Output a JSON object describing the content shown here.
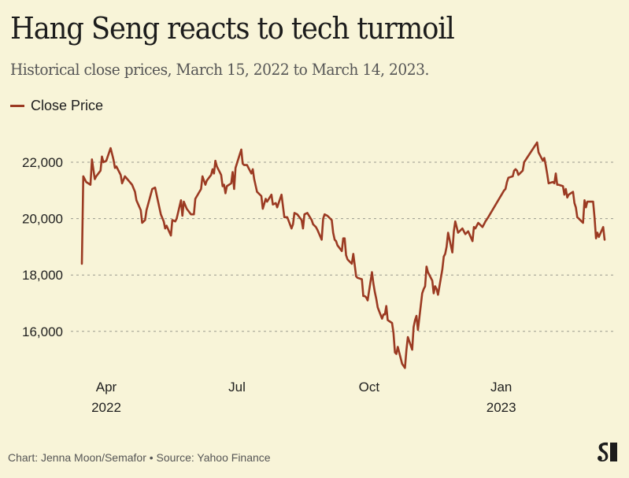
{
  "header": {
    "title": "Hang Seng reacts to tech turmoil",
    "subtitle": "Historical close prices, March 15, 2022 to March 14, 2023."
  },
  "legend": {
    "items": [
      {
        "label": "Close Price",
        "color": "#9b3a22"
      }
    ]
  },
  "footer": {
    "credit": "Chart: Jenna Moon/Semafor • Source: Yahoo Finance",
    "logo_icon": "semafor-logo-icon"
  },
  "colors": {
    "background": "#f8f4d8",
    "line": "#9b3a22",
    "grid": "#9a9a8e",
    "text": "#1e1e1e"
  },
  "chart_data": {
    "type": "line",
    "title": "Hang Seng reacts to tech turmoil",
    "subtitle": "Historical close prices, March 15, 2022 to March 14, 2023.",
    "xlabel": "",
    "ylabel": "",
    "x_range": [
      "2022-03-15",
      "2023-03-14"
    ],
    "ylim": [
      14500,
      23000
    ],
    "y_ticks": [
      16000,
      18000,
      20000,
      22000
    ],
    "y_tick_labels": [
      "16,000",
      "18,000",
      "20,000",
      "22,000"
    ],
    "x_ticks": [
      {
        "date": "2022-04-01",
        "label": "Apr",
        "sublabel": "2022"
      },
      {
        "date": "2022-07-01",
        "label": "Jul",
        "sublabel": ""
      },
      {
        "date": "2022-10-01",
        "label": "Oct",
        "sublabel": ""
      },
      {
        "date": "2023-01-01",
        "label": "Jan",
        "sublabel": "2023"
      }
    ],
    "grid": "horizontal-dashed",
    "legend_position": "top-left",
    "series": [
      {
        "name": "Close Price",
        "color": "#9b3a22",
        "points": [
          [
            "2022-03-15",
            18400
          ],
          [
            "2022-03-16",
            21500
          ],
          [
            "2022-03-18",
            21300
          ],
          [
            "2022-03-21",
            21200
          ],
          [
            "2022-03-22",
            22100
          ],
          [
            "2022-03-24",
            21400
          ],
          [
            "2022-03-25",
            21500
          ],
          [
            "2022-03-28",
            21700
          ],
          [
            "2022-03-29",
            22200
          ],
          [
            "2022-03-30",
            22000
          ],
          [
            "2022-04-01",
            22050
          ],
          [
            "2022-04-04",
            22500
          ],
          [
            "2022-04-06",
            22100
          ],
          [
            "2022-04-07",
            21800
          ],
          [
            "2022-04-08",
            21850
          ],
          [
            "2022-04-11",
            21550
          ],
          [
            "2022-04-12",
            21250
          ],
          [
            "2022-04-14",
            21500
          ],
          [
            "2022-04-19",
            21200
          ],
          [
            "2022-04-21",
            20950
          ],
          [
            "2022-04-22",
            20650
          ],
          [
            "2022-04-25",
            20300
          ],
          [
            "2022-04-26",
            19850
          ],
          [
            "2022-04-28",
            19950
          ],
          [
            "2022-04-29",
            20300
          ],
          [
            "2022-05-03",
            21050
          ],
          [
            "2022-05-05",
            21100
          ],
          [
            "2022-05-06",
            20850
          ],
          [
            "2022-05-09",
            20150
          ],
          [
            "2022-05-11",
            19900
          ],
          [
            "2022-05-12",
            19650
          ],
          [
            "2022-05-13",
            19750
          ],
          [
            "2022-05-16",
            19400
          ],
          [
            "2022-05-17",
            19950
          ],
          [
            "2022-05-19",
            19900
          ],
          [
            "2022-05-20",
            20000
          ],
          [
            "2022-05-23",
            20650
          ],
          [
            "2022-05-24",
            20100
          ],
          [
            "2022-05-25",
            20600
          ],
          [
            "2022-05-27",
            20350
          ],
          [
            "2022-05-30",
            20150
          ],
          [
            "2022-06-01",
            20150
          ],
          [
            "2022-06-02",
            20700
          ],
          [
            "2022-06-06",
            21050
          ],
          [
            "2022-06-07",
            21500
          ],
          [
            "2022-06-09",
            21200
          ],
          [
            "2022-06-10",
            21350
          ],
          [
            "2022-06-13",
            21550
          ],
          [
            "2022-06-14",
            21750
          ],
          [
            "2022-06-15",
            21600
          ],
          [
            "2022-06-16",
            22050
          ],
          [
            "2022-06-17",
            21850
          ],
          [
            "2022-06-20",
            21550
          ],
          [
            "2022-06-21",
            21150
          ],
          [
            "2022-06-22",
            21200
          ],
          [
            "2022-06-23",
            20900
          ],
          [
            "2022-06-24",
            21150
          ],
          [
            "2022-06-27",
            21250
          ],
          [
            "2022-06-28",
            21650
          ],
          [
            "2022-06-29",
            21050
          ],
          [
            "2022-06-30",
            21800
          ],
          [
            "2022-07-04",
            22450
          ],
          [
            "2022-07-05",
            21950
          ],
          [
            "2022-07-06",
            21900
          ],
          [
            "2022-07-08",
            21900
          ],
          [
            "2022-07-11",
            21600
          ],
          [
            "2022-07-12",
            21750
          ],
          [
            "2022-07-13",
            21400
          ],
          [
            "2022-07-15",
            20950
          ],
          [
            "2022-07-18",
            20800
          ],
          [
            "2022-07-19",
            20350
          ],
          [
            "2022-07-21",
            20700
          ],
          [
            "2022-07-22",
            20600
          ],
          [
            "2022-07-25",
            20850
          ],
          [
            "2022-07-26",
            20500
          ],
          [
            "2022-07-28",
            20550
          ],
          [
            "2022-07-29",
            20400
          ],
          [
            "2022-08-01",
            20850
          ],
          [
            "2022-08-02",
            20450
          ],
          [
            "2022-08-03",
            20050
          ],
          [
            "2022-08-05",
            20050
          ],
          [
            "2022-08-08",
            19650
          ],
          [
            "2022-08-09",
            19800
          ],
          [
            "2022-08-10",
            20200
          ],
          [
            "2022-08-12",
            20150
          ],
          [
            "2022-08-15",
            19950
          ],
          [
            "2022-08-16",
            19650
          ],
          [
            "2022-08-17",
            20150
          ],
          [
            "2022-08-19",
            20200
          ],
          [
            "2022-08-22",
            19950
          ],
          [
            "2022-08-23",
            19800
          ],
          [
            "2022-08-25",
            19700
          ],
          [
            "2022-08-26",
            19600
          ],
          [
            "2022-08-29",
            19250
          ],
          [
            "2022-08-30",
            20000
          ],
          [
            "2022-08-31",
            20150
          ],
          [
            "2022-09-02",
            20100
          ],
          [
            "2022-09-05",
            19950
          ],
          [
            "2022-09-06",
            19500
          ],
          [
            "2022-09-07",
            19250
          ],
          [
            "2022-09-08",
            19200
          ],
          [
            "2022-09-09",
            19050
          ],
          [
            "2022-09-12",
            18850
          ],
          [
            "2022-09-13",
            19300
          ],
          [
            "2022-09-14",
            19300
          ],
          [
            "2022-09-15",
            18700
          ],
          [
            "2022-09-16",
            18550
          ],
          [
            "2022-09-19",
            18400
          ],
          [
            "2022-09-20",
            18750
          ],
          [
            "2022-09-21",
            18350
          ],
          [
            "2022-09-22",
            17950
          ],
          [
            "2022-09-23",
            17900
          ],
          [
            "2022-09-26",
            17850
          ],
          [
            "2022-09-27",
            17250
          ],
          [
            "2022-09-28",
            17250
          ],
          [
            "2022-09-29",
            17200
          ],
          [
            "2022-09-30",
            17100
          ],
          [
            "2022-10-03",
            18100
          ],
          [
            "2022-10-04",
            17700
          ],
          [
            "2022-10-05",
            17400
          ],
          [
            "2022-10-06",
            17150
          ],
          [
            "2022-10-07",
            16850
          ],
          [
            "2022-10-10",
            16450
          ],
          [
            "2022-10-11",
            16600
          ],
          [
            "2022-10-12",
            16600
          ],
          [
            "2022-10-13",
            16900
          ],
          [
            "2022-10-14",
            16400
          ],
          [
            "2022-10-17",
            16300
          ],
          [
            "2022-10-18",
            15950
          ],
          [
            "2022-10-19",
            15250
          ],
          [
            "2022-10-20",
            15200
          ],
          [
            "2022-10-21",
            15450
          ],
          [
            "2022-10-24",
            14850
          ],
          [
            "2022-10-26",
            14700
          ],
          [
            "2022-10-27",
            15350
          ],
          [
            "2022-10-28",
            15800
          ],
          [
            "2022-10-31",
            15350
          ],
          [
            "2022-11-01",
            16150
          ],
          [
            "2022-11-02",
            16400
          ],
          [
            "2022-11-03",
            16550
          ],
          [
            "2022-11-04",
            16050
          ],
          [
            "2022-11-07",
            17350
          ],
          [
            "2022-11-08",
            17500
          ],
          [
            "2022-11-09",
            17600
          ],
          [
            "2022-11-10",
            18300
          ],
          [
            "2022-11-11",
            18100
          ],
          [
            "2022-11-14",
            17800
          ],
          [
            "2022-11-15",
            17350
          ],
          [
            "2022-11-16",
            17600
          ],
          [
            "2022-11-17",
            17500
          ],
          [
            "2022-11-18",
            17300
          ],
          [
            "2022-11-21",
            18200
          ],
          [
            "2022-11-22",
            18650
          ],
          [
            "2022-11-23",
            18750
          ],
          [
            "2022-11-24",
            19000
          ],
          [
            "2022-11-25",
            19500
          ],
          [
            "2022-11-28",
            18800
          ],
          [
            "2022-11-29",
            19550
          ],
          [
            "2022-11-30",
            19900
          ],
          [
            "2022-12-01",
            19700
          ],
          [
            "2022-12-02",
            19500
          ],
          [
            "2022-12-05",
            19650
          ],
          [
            "2022-12-06",
            19550
          ],
          [
            "2022-12-07",
            19450
          ],
          [
            "2022-12-08",
            19500
          ],
          [
            "2022-12-09",
            19550
          ],
          [
            "2022-12-12",
            19200
          ],
          [
            "2022-12-13",
            19700
          ],
          [
            "2022-12-14",
            19650
          ],
          [
            "2022-12-15",
            19750
          ],
          [
            "2022-12-16",
            19850
          ],
          [
            "2022-12-19",
            19700
          ],
          [
            "2022-12-20",
            19800
          ],
          [
            "2022-12-21",
            19900
          ],
          [
            "2022-12-23",
            20050
          ],
          [
            "2023-01-03",
            21000
          ],
          [
            "2023-01-04",
            21050
          ],
          [
            "2023-01-05",
            21300
          ],
          [
            "2023-01-06",
            21450
          ],
          [
            "2023-01-09",
            21500
          ],
          [
            "2023-01-10",
            21700
          ],
          [
            "2023-01-11",
            21750
          ],
          [
            "2023-01-12",
            21700
          ],
          [
            "2023-01-13",
            21550
          ],
          [
            "2023-01-16",
            21700
          ],
          [
            "2023-01-17",
            22000
          ],
          [
            "2023-01-26",
            22700
          ],
          [
            "2023-01-27",
            22350
          ],
          [
            "2023-01-30",
            22050
          ],
          [
            "2023-01-31",
            22150
          ],
          [
            "2023-02-01",
            21900
          ],
          [
            "2023-02-02",
            21600
          ],
          [
            "2023-02-03",
            21250
          ],
          [
            "2023-02-06",
            21300
          ],
          [
            "2023-02-07",
            21250
          ],
          [
            "2023-02-08",
            21600
          ],
          [
            "2023-02-09",
            21200
          ],
          [
            "2023-02-10",
            21200
          ],
          [
            "2023-02-13",
            21150
          ],
          [
            "2023-02-14",
            20850
          ],
          [
            "2023-02-15",
            21050
          ],
          [
            "2023-02-16",
            20750
          ],
          [
            "2023-02-17",
            20850
          ],
          [
            "2023-02-20",
            20950
          ],
          [
            "2023-02-21",
            20550
          ],
          [
            "2023-02-22",
            20400
          ],
          [
            "2023-02-23",
            20050
          ],
          [
            "2023-02-24",
            20000
          ],
          [
            "2023-02-27",
            19850
          ],
          [
            "2023-02-28",
            20650
          ],
          [
            "2023-03-01",
            20400
          ],
          [
            "2023-03-02",
            20600
          ],
          [
            "2023-03-03",
            20600
          ],
          [
            "2023-03-06",
            20600
          ],
          [
            "2023-03-07",
            20050
          ],
          [
            "2023-03-08",
            19300
          ],
          [
            "2023-03-09",
            19500
          ],
          [
            "2023-03-10",
            19350
          ],
          [
            "2023-03-13",
            19700
          ],
          [
            "2023-03-14",
            19250
          ]
        ]
      }
    ]
  }
}
